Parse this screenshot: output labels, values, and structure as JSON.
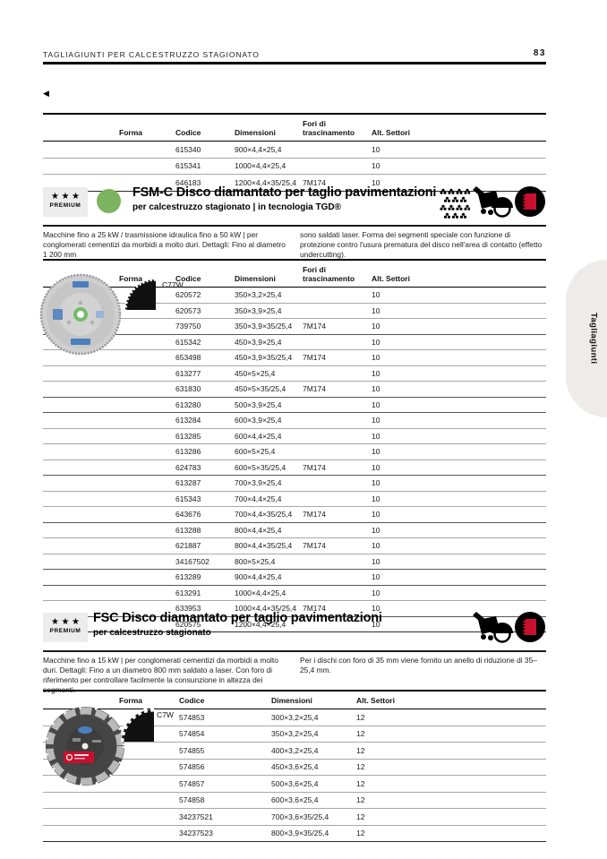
{
  "header": {
    "title": "TAGLIAGIUNTI PER CALCESTRUZZO STAGIONATO",
    "page_number": "83"
  },
  "back_arrow": "◀",
  "side_tab": {
    "label": "Tagliagiunti"
  },
  "colors": {
    "indicator_green": "#7cb35f",
    "accent_red": "#c8102e"
  },
  "continuation_table": {
    "columns": {
      "forma": "Forma",
      "codice": "Codice",
      "dimensioni": "Dimensioni",
      "fori": "Fori di trascinamento",
      "settori": "Alt. Settori"
    },
    "rows": [
      {
        "codice": "615340",
        "dimensioni": "900×4,4×25,4",
        "fori": "",
        "settori": "10"
      },
      {
        "codice": "615341",
        "dimensioni": "1000×4,4×25,4",
        "fori": "",
        "settori": "10"
      },
      {
        "codice": "646183",
        "dimensioni": "1200×4,4×35/25,4",
        "fori": "7M174",
        "settori": "10"
      }
    ]
  },
  "sections": {
    "fsm_c": {
      "badge_stars": "★★★",
      "badge_label": "PREMIUM",
      "indicator_color": "#7cb35f",
      "title": "FSM-C Disco diamantato per taglio pavimentazioni",
      "subtitle": "per calcestruzzo stagionato | in tecnologia TGD®",
      "icons": [
        "aggregate-pattern-icon",
        "floor-saw-icon",
        "blade-cross-section-icon"
      ],
      "description_left": "Macchine fino a 25 kW / trasmissione idraulica fino a 50 kW | per conglomerati cementizi da morbidi a molto duri. Dettagli: Fino al diametro 1 200 mm",
      "description_right": "sono saldati laser. Forma dei segmenti speciale con funzione di protezione contro l'usura prematura del disco nell'area di contatto (effetto undercutting).",
      "forma_code": "C77W",
      "columns": {
        "forma": "Forma",
        "codice": "Codice",
        "dimensioni": "Dimensioni",
        "fori": "Fori di trascinamento",
        "settori": "Alt. Settori"
      },
      "rows": [
        {
          "codice": "620572",
          "dimensioni": "350×3,2×25,4",
          "fori": "",
          "settori": "10"
        },
        {
          "codice": "620573",
          "dimensioni": "350×3,9×25,4",
          "fori": "",
          "settori": "10"
        },
        {
          "codice": "739750",
          "dimensioni": "350×3,9×35/25,4",
          "fori": "7M174",
          "settori": "10"
        },
        {
          "codice": "615342",
          "dimensioni": "450×3,9×25,4",
          "fori": "",
          "settori": "10"
        },
        {
          "codice": "653498",
          "dimensioni": "450×3,9×35/25,4",
          "fori": "7M174",
          "settori": "10"
        },
        {
          "codice": "613277",
          "dimensioni": "450×5×25,4",
          "fori": "",
          "settori": "10"
        },
        {
          "codice": "631830",
          "dimensioni": "450×5×35/25,4",
          "fori": "7M174",
          "settori": "10"
        },
        {
          "codice": "613280",
          "dimensioni": "500×3,9×25,4",
          "fori": "",
          "settori": "10"
        },
        {
          "codice": "613284",
          "dimensioni": "600×3,9×25,4",
          "fori": "",
          "settori": "10"
        },
        {
          "codice": "613285",
          "dimensioni": "600×4,4×25,4",
          "fori": "",
          "settori": "10"
        },
        {
          "codice": "613286",
          "dimensioni": "600×5×25,4",
          "fori": "",
          "settori": "10"
        },
        {
          "codice": "624783",
          "dimensioni": "600×5×35/25,4",
          "fori": "7M174",
          "settori": "10"
        },
        {
          "codice": "613287",
          "dimensioni": "700×3,9×25,4",
          "fori": "",
          "settori": "10"
        },
        {
          "codice": "615343",
          "dimensioni": "700×4,4×25,4",
          "fori": "",
          "settori": "10"
        },
        {
          "codice": "643676",
          "dimensioni": "700×4,4×35/25,4",
          "fori": "7M174",
          "settori": "10"
        },
        {
          "codice": "613288",
          "dimensioni": "800×4,4×25,4",
          "fori": "",
          "settori": "10"
        },
        {
          "codice": "621887",
          "dimensioni": "800×4,4×35/25,4",
          "fori": "7M174",
          "settori": "10"
        },
        {
          "codice": "34167502",
          "dimensioni": "800×5×25,4",
          "fori": "",
          "settori": "10"
        },
        {
          "codice": "613289",
          "dimensioni": "900×4,4×25,4",
          "fori": "",
          "settori": "10"
        },
        {
          "codice": "613291",
          "dimensioni": "1000×4,4×25,4",
          "fori": "",
          "settori": "10"
        },
        {
          "codice": "633953",
          "dimensioni": "1000×4,4×35/25,4",
          "fori": "7M174",
          "settori": "10"
        },
        {
          "codice": "620575",
          "dimensioni": "1200×4,4×25,4",
          "fori": "",
          "settori": "10"
        }
      ]
    },
    "fsc": {
      "badge_stars": "★★★",
      "badge_label": "PREMIUM",
      "title": "FSC Disco diamantato per taglio pavimentazioni",
      "subtitle": "per calcestruzzo stagionato",
      "icons": [
        "floor-saw-icon",
        "blade-cross-section-icon"
      ],
      "description_left": "Macchine fino a 15 kW | per conglomerati cementizi da morbidi a molto duri. Dettagli: Fino a un diametro 800 mm saldato a laser. Con foro di riferimento per controllare facilmente la consunzione in altezza dei segmenti.",
      "description_right": "Per i dischi con foro di 35 mm viene fornito un anello di riduzione di 35–25,4 mm.",
      "forma_code": "C7W",
      "columns": {
        "forma": "Forma",
        "codice": "Codice",
        "dimensioni": "Dimensioni",
        "settori": "Alt. Settori"
      },
      "rows": [
        {
          "codice": "574853",
          "dimensioni": "300×3,2×25,4",
          "settori": "12"
        },
        {
          "codice": "574854",
          "dimensioni": "350×3,2×25,4",
          "settori": "12"
        },
        {
          "codice": "574855",
          "dimensioni": "400×3,2×25,4",
          "settori": "12"
        },
        {
          "codice": "574856",
          "dimensioni": "450×3,6×25,4",
          "settori": "12"
        },
        {
          "codice": "574857",
          "dimensioni": "500×3,6×25,4",
          "settori": "12"
        },
        {
          "codice": "574858",
          "dimensioni": "600×3,6×25,4",
          "settori": "12"
        },
        {
          "codice": "34237521",
          "dimensioni": "700×3,6×35/25,4",
          "settori": "12"
        },
        {
          "codice": "34237523",
          "dimensioni": "800×3,9×35/25,4",
          "settori": "12"
        }
      ]
    }
  }
}
